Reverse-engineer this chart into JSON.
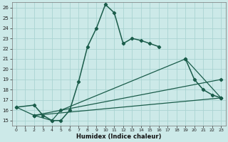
{
  "xlabel": "Humidex (Indice chaleur)",
  "background_color": "#cce9e8",
  "grid_color": "#aad4d2",
  "line_color": "#1a5c4a",
  "xlim": [
    -0.5,
    23.5
  ],
  "ylim": [
    14.5,
    26.5
  ],
  "xticks": [
    0,
    1,
    2,
    3,
    4,
    5,
    6,
    7,
    8,
    9,
    10,
    11,
    12,
    13,
    14,
    15,
    16,
    17,
    18,
    19,
    20,
    21,
    22,
    23
  ],
  "yticks": [
    15,
    16,
    17,
    18,
    19,
    20,
    21,
    22,
    23,
    24,
    25,
    26
  ],
  "main_curve_x": [
    0,
    2,
    3,
    4,
    5,
    6,
    7,
    8,
    9,
    10,
    11,
    12,
    13,
    14,
    15,
    16,
    19,
    20,
    21,
    22,
    23
  ],
  "main_curve_y": [
    16.3,
    16.5,
    15.5,
    15.0,
    15.0,
    16.0,
    18.8,
    22.2,
    24.0,
    26.3,
    25.5,
    22.5,
    23.0,
    22.8,
    22.5,
    22.2,
    21.0,
    19.0,
    18.0,
    17.5,
    17.2
  ],
  "line2_x": [
    0,
    2,
    4,
    5,
    19,
    23
  ],
  "line2_y": [
    16.3,
    15.5,
    15.0,
    16.0,
    21.0,
    17.2
  ],
  "line3_x": [
    2,
    23
  ],
  "line3_y": [
    15.5,
    19.0
  ],
  "line4_x": [
    2,
    23
  ],
  "line4_y": [
    15.5,
    17.2
  ]
}
